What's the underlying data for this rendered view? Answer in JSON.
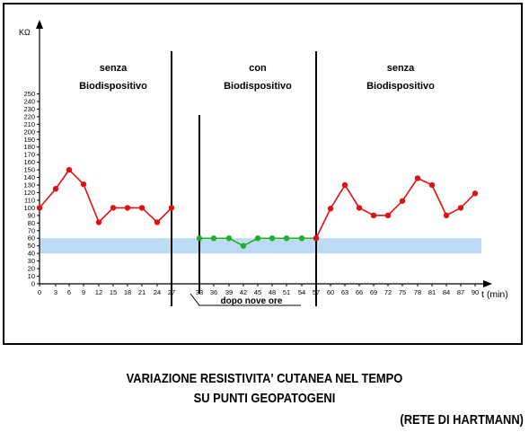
{
  "chart_data": {
    "type": "line",
    "ylabel": "KΩ",
    "xlabel": "t (min)",
    "y_ticks": [
      0,
      10,
      20,
      30,
      40,
      50,
      60,
      70,
      80,
      90,
      100,
      110,
      120,
      130,
      140,
      150,
      160,
      170,
      180,
      190,
      200,
      210,
      220,
      230,
      240,
      250
    ],
    "x_ticks": [
      "0",
      "3",
      "6",
      "9",
      "12",
      "15",
      "18",
      "21",
      "24",
      "27",
      "33",
      "36",
      "39",
      "42",
      "45",
      "48",
      "51",
      "54",
      "57",
      "60",
      "63",
      "66",
      "69",
      "72",
      "75",
      "78",
      "81",
      "84",
      "87",
      "90"
    ],
    "band": {
      "y_from": 40,
      "y_to": 60,
      "color": "#bcd9f5"
    },
    "series": [
      {
        "color": "#e01010",
        "x": [
          0,
          3,
          6,
          9,
          12,
          15,
          18,
          21,
          24,
          27
        ],
        "values": [
          100,
          125,
          150,
          131,
          81,
          100,
          100,
          100,
          81,
          100
        ]
      },
      {
        "color": "#22b022",
        "x": [
          33,
          36,
          39,
          42,
          45,
          48,
          51,
          54,
          57
        ],
        "values": [
          60,
          60,
          60,
          50,
          60,
          60,
          60,
          60,
          60
        ]
      },
      {
        "color": "#e01010",
        "x": [
          57,
          60,
          63,
          66,
          69,
          72,
          75,
          78,
          81,
          84,
          87,
          90
        ],
        "values": [
          60,
          99,
          130,
          100,
          90,
          90,
          109,
          139,
          130,
          90,
          100,
          119
        ]
      }
    ],
    "section_labels": [
      {
        "line1": "senza",
        "line2": "Biodispositivo"
      },
      {
        "line1": "con",
        "line2": "Biodispositivo"
      },
      {
        "line1": "senza",
        "line2": "Biodispositivo"
      }
    ],
    "annotation": "dopo nove ore"
  },
  "caption": {
    "line1": "VARIAZIONE RESISTIVITA' CUTANEA NEL TEMPO",
    "line2": "SU PUNTI GEOPATOGENI",
    "line3": "(RETE DI HARTMANN)"
  }
}
